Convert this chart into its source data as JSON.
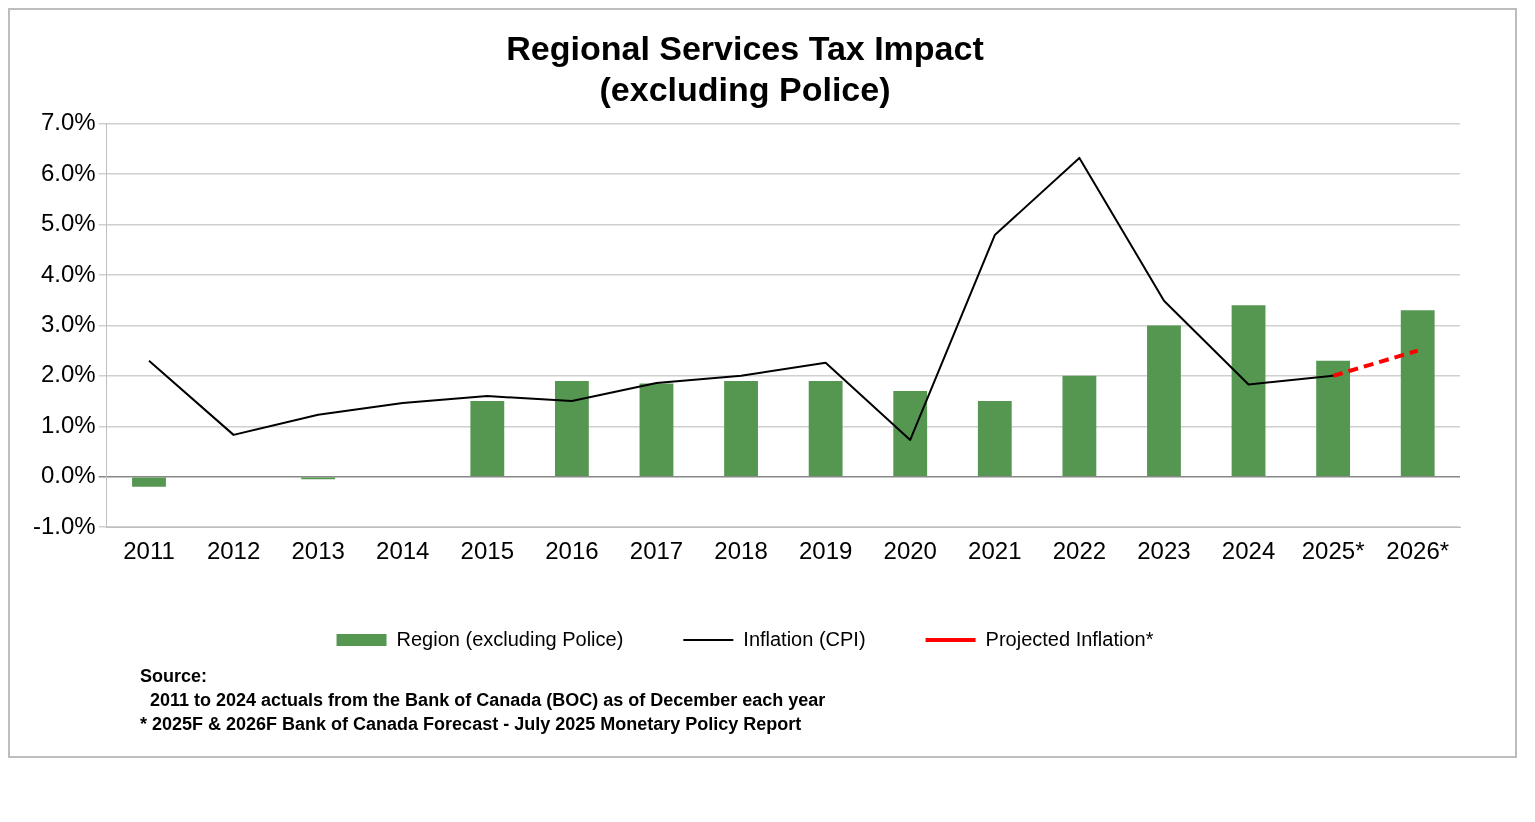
{
  "chart_data": {
    "type": "bar",
    "title": "Regional Services Tax Impact",
    "subtitle": "(excluding Police)",
    "categories": [
      "2011",
      "2012",
      "2013",
      "2014",
      "2015",
      "2016",
      "2017",
      "2018",
      "2019",
      "2020",
      "2021",
      "2022",
      "2023",
      "2024",
      "2025*",
      "2026*"
    ],
    "series": [
      {
        "name": "Region (excluding Police)",
        "color": "#559751",
        "values": [
          -0.2,
          0,
          -0.05,
          0,
          1.5,
          1.9,
          1.85,
          1.9,
          1.9,
          1.7,
          1.5,
          2.0,
          3.0,
          3.4,
          2.3,
          3.3
        ]
      },
      {
        "name": "Inflation (CPI)",
        "type": "line",
        "color": "#000000",
        "line_style": "solid",
        "values": [
          2.3,
          0.83,
          1.23,
          1.46,
          1.6,
          1.5,
          1.86,
          2.0,
          2.26,
          0.73,
          4.79,
          6.32,
          3.49,
          1.83,
          2.0,
          null
        ]
      },
      {
        "name": "Projected Inflation*",
        "type": "line",
        "color": "#ff0000",
        "line_style": "dashed",
        "values": [
          null,
          null,
          null,
          null,
          null,
          null,
          null,
          null,
          null,
          null,
          null,
          null,
          null,
          null,
          2.0,
          2.5
        ]
      }
    ],
    "ylim": [
      -1,
      7
    ],
    "yticks": [
      {
        "value": -1,
        "label": "-1.0%"
      },
      {
        "value": 0,
        "label": "0.0%"
      },
      {
        "value": 1,
        "label": "1.0%"
      },
      {
        "value": 2,
        "label": "2.0%"
      },
      {
        "value": 3,
        "label": "3.0%"
      },
      {
        "value": 4,
        "label": "4.0%"
      },
      {
        "value": 5,
        "label": "5.0%"
      },
      {
        "value": 6,
        "label": "6.0%"
      },
      {
        "value": 7,
        "label": "7.0%"
      }
    ],
    "grid": "y",
    "legend": "bottom",
    "marker": "none",
    "annotations": [
      "Source:",
      "  2011 to 2024 actuals from the Bank of Canada (BOC) as of December each year",
      "* 2025F & 2026F Bank of Canada Forecast - July 2025 Monetary Policy Report"
    ]
  }
}
